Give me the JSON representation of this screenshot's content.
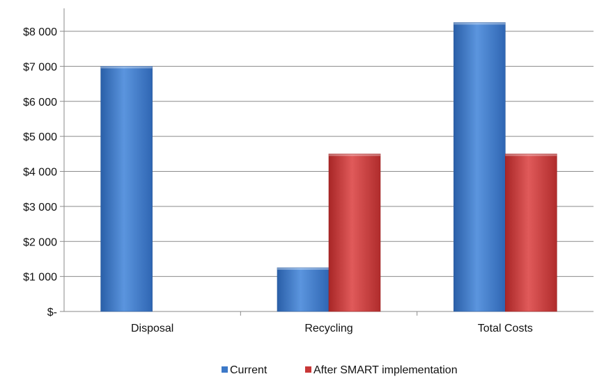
{
  "chart_data": {
    "type": "bar",
    "categories": [
      "Disposal",
      "Recycling",
      "Total Costs"
    ],
    "series": [
      {
        "name": "Current",
        "values": [
          7000,
          1250,
          8250
        ],
        "color": "#3c79c8"
      },
      {
        "name": "After SMART implementation",
        "values": [
          0,
          4500,
          4500
        ],
        "color": "#c83737"
      }
    ],
    "ylim": [
      0,
      8000
    ],
    "yticks": [
      {
        "value": 0,
        "label": "$-"
      },
      {
        "value": 1000,
        "label": "$1 000"
      },
      {
        "value": 2000,
        "label": "$2 000"
      },
      {
        "value": 3000,
        "label": "$3 000"
      },
      {
        "value": 4000,
        "label": "$4 000"
      },
      {
        "value": 5000,
        "label": "$5 000"
      },
      {
        "value": 6000,
        "label": "$6 000"
      },
      {
        "value": 7000,
        "label": "$7 000"
      },
      {
        "value": 8000,
        "label": "$8 000"
      }
    ],
    "grid": true,
    "legend_position": "bottom"
  }
}
